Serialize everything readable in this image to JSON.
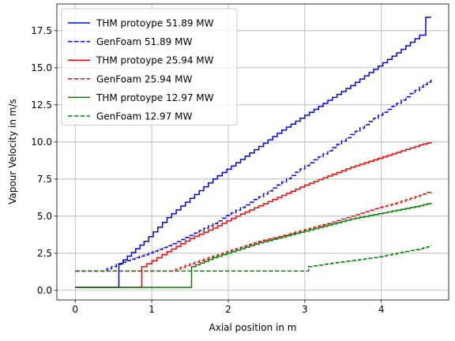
{
  "chart_data": {
    "type": "line",
    "title": "",
    "xlabel": "Axial position in m",
    "ylabel": "Vapour Velocity in m/s",
    "xlim": [
      -0.24,
      4.88
    ],
    "ylim": [
      -0.65,
      19.3
    ],
    "x_ticks": [
      0,
      1,
      2,
      3,
      4
    ],
    "x_tick_labels": [
      "0",
      "1",
      "2",
      "3",
      "4"
    ],
    "y_ticks": [
      0.0,
      2.5,
      5.0,
      7.5,
      10.0,
      12.5,
      15.0,
      17.5
    ],
    "y_tick_labels": [
      "0.0",
      "2.5",
      "5.0",
      "7.5",
      "10.0",
      "12.5",
      "15.0",
      "17.5"
    ],
    "grid": true,
    "legend_position": "upper-left",
    "series": [
      {
        "name": "THM protoype 51.89 MW",
        "color": "#0000ff",
        "style": "solid",
        "x": [
          0,
          0.57,
          0.57,
          0.9,
          1.2,
          1.5,
          1.8,
          2.1,
          2.4,
          2.7,
          3.0,
          3.3,
          3.6,
          3.9,
          4.2,
          4.5,
          4.58,
          4.65
        ],
        "y": [
          0.2,
          0.2,
          1.8,
          3.3,
          4.9,
          6.2,
          7.5,
          8.6,
          9.7,
          10.8,
          11.8,
          12.8,
          13.8,
          14.9,
          16.0,
          17.2,
          18.4,
          18.4
        ]
      },
      {
        "name": "GenFoam 51.89 MW",
        "color": "#0000ff",
        "style": "dashed",
        "x": [
          0,
          0.35,
          0.6,
          0.9,
          1.2,
          1.5,
          1.8,
          2.1,
          2.4,
          2.7,
          3.0,
          3.3,
          3.6,
          3.9,
          4.2,
          4.5,
          4.65
        ],
        "y": [
          1.3,
          1.3,
          1.9,
          2.4,
          3.0,
          3.7,
          4.5,
          5.4,
          6.3,
          7.3,
          8.4,
          9.4,
          10.5,
          11.6,
          12.6,
          13.7,
          14.2
        ]
      },
      {
        "name": "THM protoype 25.94 MW",
        "color": "#ff0000",
        "style": "solid",
        "x": [
          0,
          0.87,
          0.87,
          1.2,
          1.5,
          1.8,
          2.1,
          2.4,
          2.7,
          3.0,
          3.3,
          3.6,
          3.9,
          4.2,
          4.5,
          4.65
        ],
        "y": [
          0.2,
          0.2,
          1.6,
          2.6,
          3.5,
          4.2,
          5.0,
          5.7,
          6.4,
          7.1,
          7.7,
          8.3,
          8.8,
          9.3,
          9.8,
          10.0
        ]
      },
      {
        "name": "GenFoam 25.94 MW",
        "color": "#ff0000",
        "style": "dashed",
        "x": [
          0,
          1.25,
          1.5,
          1.8,
          2.1,
          2.4,
          2.7,
          3.0,
          3.3,
          3.6,
          3.9,
          4.2,
          4.5,
          4.65
        ],
        "y": [
          1.3,
          1.3,
          1.8,
          2.3,
          2.8,
          3.3,
          3.7,
          4.1,
          4.5,
          5.0,
          5.5,
          5.9,
          6.4,
          6.7
        ]
      },
      {
        "name": "THM protoype 12.97 MW",
        "color": "#008000",
        "style": "solid",
        "x": [
          0,
          1.52,
          1.52,
          1.8,
          2.1,
          2.4,
          2.7,
          3.0,
          3.3,
          3.6,
          3.9,
          4.2,
          4.5,
          4.65
        ],
        "y": [
          0.2,
          0.2,
          1.6,
          2.2,
          2.7,
          3.2,
          3.6,
          4.0,
          4.4,
          4.8,
          5.1,
          5.4,
          5.7,
          5.9
        ]
      },
      {
        "name": "GenFoam 12.97 MW",
        "color": "#008000",
        "style": "dashed",
        "x": [
          0,
          2.97,
          3.05,
          3.3,
          3.6,
          3.9,
          4.2,
          4.5,
          4.65
        ],
        "y": [
          1.3,
          1.3,
          1.6,
          1.8,
          2.0,
          2.2,
          2.5,
          2.8,
          3.0
        ]
      }
    ]
  }
}
